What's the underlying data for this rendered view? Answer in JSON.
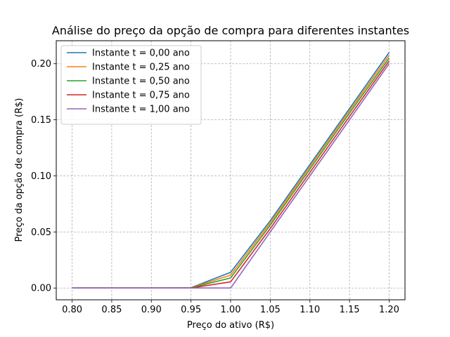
{
  "chart_data": {
    "type": "line",
    "title": "Análise do preço da opção de compra para diferentes instantes",
    "xlabel": "Preço do ativo (R$)",
    "ylabel": "Preço da opção de compra (R$)",
    "x": [
      0.8,
      0.85,
      0.9,
      0.95,
      1.0,
      1.05,
      1.1,
      1.15,
      1.2
    ],
    "xlim": [
      0.78,
      1.22
    ],
    "ylim": [
      -0.0105,
      0.2205
    ],
    "xticks": [
      0.8,
      0.85,
      0.9,
      0.95,
      1.0,
      1.05,
      1.1,
      1.15,
      1.2
    ],
    "xtick_labels": [
      "0.80",
      "0.85",
      "0.90",
      "0.95",
      "1.00",
      "1.05",
      "1.10",
      "1.15",
      "1.20"
    ],
    "yticks": [
      0.0,
      0.05,
      0.1,
      0.15,
      0.2
    ],
    "ytick_labels": [
      "0.00",
      "0.05",
      "0.10",
      "0.15",
      "0.20"
    ],
    "grid": true,
    "legend_position": "top-left",
    "series": [
      {
        "name": "Instante t = 0,00 ano",
        "color": "#1f77b4",
        "values": [
          0,
          0,
          0,
          0.0003,
          0.014,
          0.06,
          0.11,
          0.16,
          0.21
        ]
      },
      {
        "name": "Instante t = 0,25 ano",
        "color": "#ff7f0e",
        "values": [
          0,
          0,
          0,
          0.0002,
          0.0115,
          0.058,
          0.108,
          0.158,
          0.2075
        ]
      },
      {
        "name": "Instante t = 0,50 ano",
        "color": "#2ca02c",
        "values": [
          0,
          0,
          0,
          0.0001,
          0.009,
          0.056,
          0.106,
          0.156,
          0.205
        ]
      },
      {
        "name": "Instante t = 0,75 ano",
        "color": "#d62728",
        "values": [
          0,
          0,
          0,
          0,
          0.0055,
          0.053,
          0.103,
          0.153,
          0.2025
        ]
      },
      {
        "name": "Instante t = 1,00 ano",
        "color": "#9467bd",
        "values": [
          0,
          0,
          0,
          0,
          0,
          0.05,
          0.1,
          0.15,
          0.2
        ]
      }
    ]
  }
}
